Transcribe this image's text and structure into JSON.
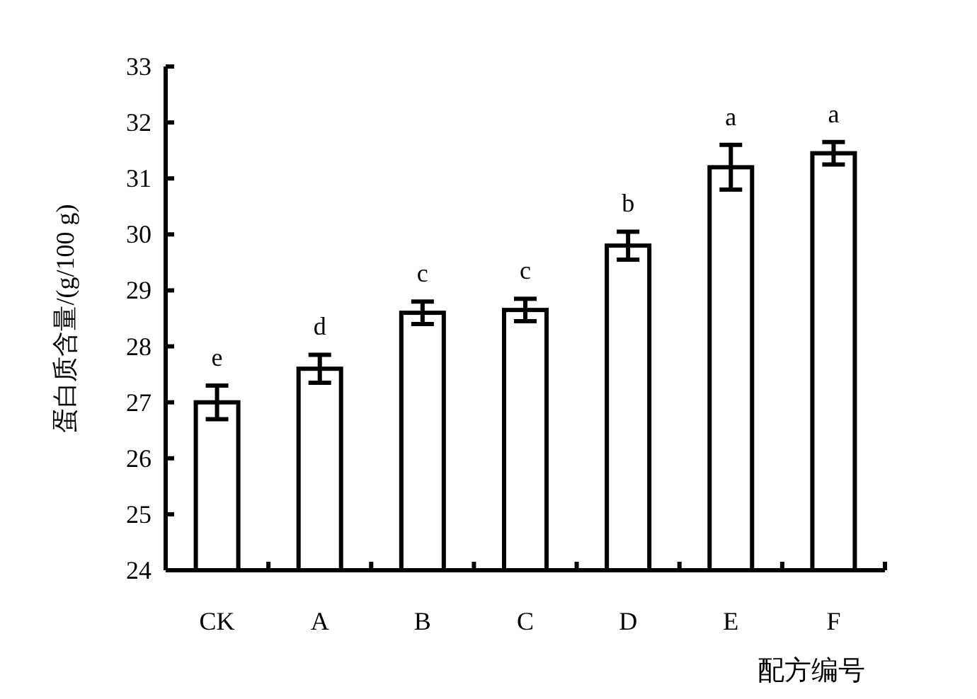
{
  "chart_data": {
    "type": "bar",
    "ylabel": "蛋白质含量/(g/100 g)",
    "xlabel": "配方编号",
    "categories": [
      "CK",
      "A",
      "B",
      "C",
      "D",
      "E",
      "F"
    ],
    "values": [
      27.0,
      27.6,
      28.6,
      28.65,
      29.8,
      31.2,
      31.45
    ],
    "errors": [
      0.3,
      0.25,
      0.2,
      0.2,
      0.25,
      0.4,
      0.2
    ],
    "color": "#ffffff",
    "ylim": [
      24,
      33
    ],
    "yticks": [
      24,
      25,
      26,
      27,
      28,
      29,
      30,
      31,
      32,
      33
    ],
    "grid": false,
    "annotations": [
      "e",
      "d",
      "c",
      "c",
      "b",
      "a",
      "a"
    ]
  }
}
